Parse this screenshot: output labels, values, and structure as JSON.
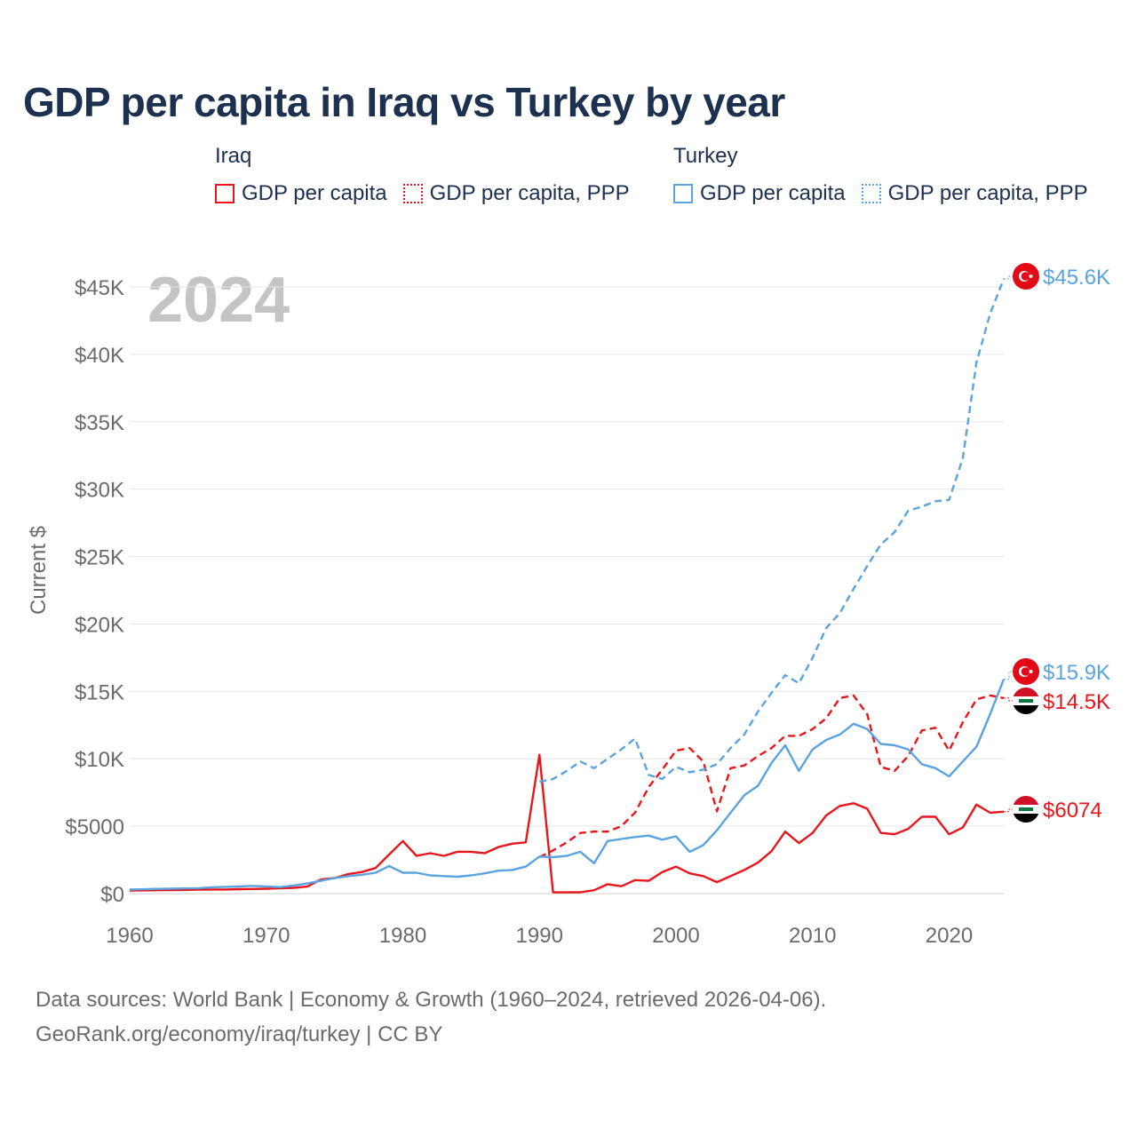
{
  "title": "GDP per capita in Iraq vs Turkey by year",
  "legend": {
    "groups": [
      {
        "name": "Iraq",
        "items": [
          {
            "label": "GDP per capita",
            "color": "#e8161b",
            "style": "solid"
          },
          {
            "label": "GDP per capita, PPP",
            "color": "#e8161b",
            "style": "dotted"
          }
        ]
      },
      {
        "name": "Turkey",
        "items": [
          {
            "label": "GDP per capita",
            "color": "#5ba3e0",
            "style": "solid"
          },
          {
            "label": "GDP per capita, PPP",
            "color": "#5ba3e0",
            "style": "dotted"
          }
        ]
      }
    ]
  },
  "year_watermark": "2024",
  "footer": {
    "line1": "Data sources: World Bank | Economy & Growth (1960–2024, retrieved 2026-04-06).",
    "line2": "GeoRank.org/economy/iraq/turkey | CC BY"
  },
  "chart_data": {
    "type": "line",
    "title": "GDP per capita in Iraq vs Turkey by year",
    "xlabel": "",
    "ylabel": "Current $",
    "xlim": [
      1960,
      2024
    ],
    "ylim": [
      0,
      45000
    ],
    "x_ticks": [
      1960,
      1970,
      1980,
      1990,
      2000,
      2010,
      2020
    ],
    "x_tick_labels": [
      "1960",
      "1970",
      "1980",
      "1990",
      "2000",
      "2010",
      "2020"
    ],
    "y_ticks": [
      0,
      5000,
      10000,
      15000,
      20000,
      25000,
      30000,
      35000,
      40000,
      45000
    ],
    "y_tick_labels": [
      "$0",
      "$5000",
      "$10K",
      "$15K",
      "$20K",
      "$25K",
      "$30K",
      "$35K",
      "$40K",
      "$45K"
    ],
    "grid": true,
    "series": [
      {
        "name": "Iraq GDP per capita",
        "color": "#e8161b",
        "dash": "solid",
        "end_label": "$6074",
        "flag": "iraq",
        "points": [
          [
            1960,
            230
          ],
          [
            1961,
            240
          ],
          [
            1962,
            250
          ],
          [
            1963,
            255
          ],
          [
            1964,
            270
          ],
          [
            1965,
            290
          ],
          [
            1966,
            300
          ],
          [
            1967,
            300
          ],
          [
            1968,
            330
          ],
          [
            1969,
            340
          ],
          [
            1970,
            360
          ],
          [
            1971,
            400
          ],
          [
            1972,
            430
          ],
          [
            1973,
            520
          ],
          [
            1974,
            1050
          ],
          [
            1975,
            1150
          ],
          [
            1976,
            1450
          ],
          [
            1977,
            1600
          ],
          [
            1978,
            1900
          ],
          [
            1979,
            2900
          ],
          [
            1980,
            3900
          ],
          [
            1981,
            2800
          ],
          [
            1982,
            3000
          ],
          [
            1983,
            2800
          ],
          [
            1984,
            3100
          ],
          [
            1985,
            3100
          ],
          [
            1986,
            3000
          ],
          [
            1987,
            3450
          ],
          [
            1988,
            3700
          ],
          [
            1989,
            3800
          ],
          [
            1990,
            10300
          ],
          [
            1991,
            100
          ],
          [
            1992,
            90
          ],
          [
            1993,
            100
          ],
          [
            1994,
            250
          ],
          [
            1995,
            700
          ],
          [
            1996,
            550
          ],
          [
            1997,
            1000
          ],
          [
            1998,
            950
          ],
          [
            1999,
            1600
          ],
          [
            2000,
            2000
          ],
          [
            2001,
            1500
          ],
          [
            2002,
            1300
          ],
          [
            2003,
            850
          ],
          [
            2004,
            1300
          ],
          [
            2005,
            1750
          ],
          [
            2006,
            2300
          ],
          [
            2007,
            3150
          ],
          [
            2008,
            4600
          ],
          [
            2009,
            3750
          ],
          [
            2010,
            4500
          ],
          [
            2011,
            5800
          ],
          [
            2012,
            6500
          ],
          [
            2013,
            6700
          ],
          [
            2014,
            6300
          ],
          [
            2015,
            4500
          ],
          [
            2016,
            4400
          ],
          [
            2017,
            4800
          ],
          [
            2018,
            5700
          ],
          [
            2019,
            5700
          ],
          [
            2020,
            4400
          ],
          [
            2021,
            4900
          ],
          [
            2022,
            6600
          ],
          [
            2023,
            6000
          ],
          [
            2024,
            6074
          ]
        ]
      },
      {
        "name": "Iraq GDP per capita, PPP",
        "color": "#e8161b",
        "dash": "dashed",
        "end_label": "$14.5K",
        "flag": "iraq",
        "points": [
          [
            1990,
            2700
          ],
          [
            1991,
            3200
          ],
          [
            1992,
            3800
          ],
          [
            1993,
            4500
          ],
          [
            1994,
            4600
          ],
          [
            1995,
            4600
          ],
          [
            1996,
            5000
          ],
          [
            1997,
            6000
          ],
          [
            1998,
            7900
          ],
          [
            1999,
            9200
          ],
          [
            2000,
            10600
          ],
          [
            2001,
            10800
          ],
          [
            2002,
            9800
          ],
          [
            2003,
            6100
          ],
          [
            2004,
            9300
          ],
          [
            2005,
            9500
          ],
          [
            2006,
            10200
          ],
          [
            2007,
            10800
          ],
          [
            2008,
            11700
          ],
          [
            2009,
            11700
          ],
          [
            2010,
            12200
          ],
          [
            2011,
            13000
          ],
          [
            2012,
            14500
          ],
          [
            2013,
            14700
          ],
          [
            2014,
            13300
          ],
          [
            2015,
            9400
          ],
          [
            2016,
            9100
          ],
          [
            2017,
            10200
          ],
          [
            2018,
            12100
          ],
          [
            2019,
            12300
          ],
          [
            2020,
            10600
          ],
          [
            2021,
            12700
          ],
          [
            2022,
            14400
          ],
          [
            2023,
            14700
          ],
          [
            2024,
            14500
          ]
        ]
      },
      {
        "name": "Turkey GDP per capita",
        "color": "#5ba3e0",
        "dash": "solid",
        "end_label": "$15.9K",
        "flag": "turkey",
        "points": [
          [
            1960,
            300
          ],
          [
            1961,
            320
          ],
          [
            1962,
            350
          ],
          [
            1963,
            370
          ],
          [
            1964,
            390
          ],
          [
            1965,
            400
          ],
          [
            1966,
            470
          ],
          [
            1967,
            500
          ],
          [
            1968,
            530
          ],
          [
            1969,
            570
          ],
          [
            1970,
            530
          ],
          [
            1971,
            480
          ],
          [
            1972,
            600
          ],
          [
            1973,
            750
          ],
          [
            1974,
            950
          ],
          [
            1975,
            1150
          ],
          [
            1976,
            1300
          ],
          [
            1977,
            1400
          ],
          [
            1978,
            1550
          ],
          [
            1979,
            2050
          ],
          [
            1980,
            1550
          ],
          [
            1981,
            1550
          ],
          [
            1982,
            1350
          ],
          [
            1983,
            1300
          ],
          [
            1984,
            1250
          ],
          [
            1985,
            1350
          ],
          [
            1986,
            1500
          ],
          [
            1987,
            1700
          ],
          [
            1988,
            1750
          ],
          [
            1989,
            2000
          ],
          [
            1990,
            2750
          ],
          [
            1991,
            2700
          ],
          [
            1992,
            2800
          ],
          [
            1993,
            3100
          ],
          [
            1994,
            2250
          ],
          [
            1995,
            3900
          ],
          [
            1996,
            4050
          ],
          [
            1997,
            4200
          ],
          [
            1998,
            4300
          ],
          [
            1999,
            4000
          ],
          [
            2000,
            4250
          ],
          [
            2001,
            3100
          ],
          [
            2002,
            3600
          ],
          [
            2003,
            4700
          ],
          [
            2004,
            6000
          ],
          [
            2005,
            7300
          ],
          [
            2006,
            8000
          ],
          [
            2007,
            9700
          ],
          [
            2008,
            11000
          ],
          [
            2009,
            9100
          ],
          [
            2010,
            10700
          ],
          [
            2011,
            11400
          ],
          [
            2012,
            11800
          ],
          [
            2013,
            12600
          ],
          [
            2014,
            12200
          ],
          [
            2015,
            11100
          ],
          [
            2016,
            11000
          ],
          [
            2017,
            10700
          ],
          [
            2018,
            9600
          ],
          [
            2019,
            9300
          ],
          [
            2020,
            8700
          ],
          [
            2021,
            9800
          ],
          [
            2022,
            10900
          ],
          [
            2023,
            13300
          ],
          [
            2024,
            15900
          ]
        ]
      },
      {
        "name": "Turkey GDP per capita, PPP",
        "color": "#5ba3e0",
        "dash": "dashed",
        "end_label": "$45.6K",
        "flag": "turkey",
        "points": [
          [
            1990,
            8300
          ],
          [
            1991,
            8500
          ],
          [
            1992,
            9100
          ],
          [
            1993,
            9800
          ],
          [
            1994,
            9300
          ],
          [
            1995,
            10000
          ],
          [
            1996,
            10700
          ],
          [
            1997,
            11500
          ],
          [
            1998,
            8800
          ],
          [
            1999,
            8500
          ],
          [
            2000,
            9400
          ],
          [
            2001,
            9000
          ],
          [
            2002,
            9200
          ],
          [
            2003,
            9600
          ],
          [
            2004,
            10800
          ],
          [
            2005,
            11800
          ],
          [
            2006,
            13500
          ],
          [
            2007,
            14900
          ],
          [
            2008,
            16200
          ],
          [
            2009,
            15600
          ],
          [
            2010,
            17500
          ],
          [
            2011,
            19700
          ],
          [
            2012,
            20800
          ],
          [
            2013,
            22600
          ],
          [
            2014,
            24300
          ],
          [
            2015,
            25900
          ],
          [
            2016,
            26800
          ],
          [
            2017,
            28400
          ],
          [
            2018,
            28700
          ],
          [
            2019,
            29100
          ],
          [
            2020,
            29200
          ],
          [
            2021,
            32300
          ],
          [
            2022,
            39400
          ],
          [
            2023,
            43000
          ],
          [
            2024,
            45600
          ]
        ]
      }
    ]
  }
}
